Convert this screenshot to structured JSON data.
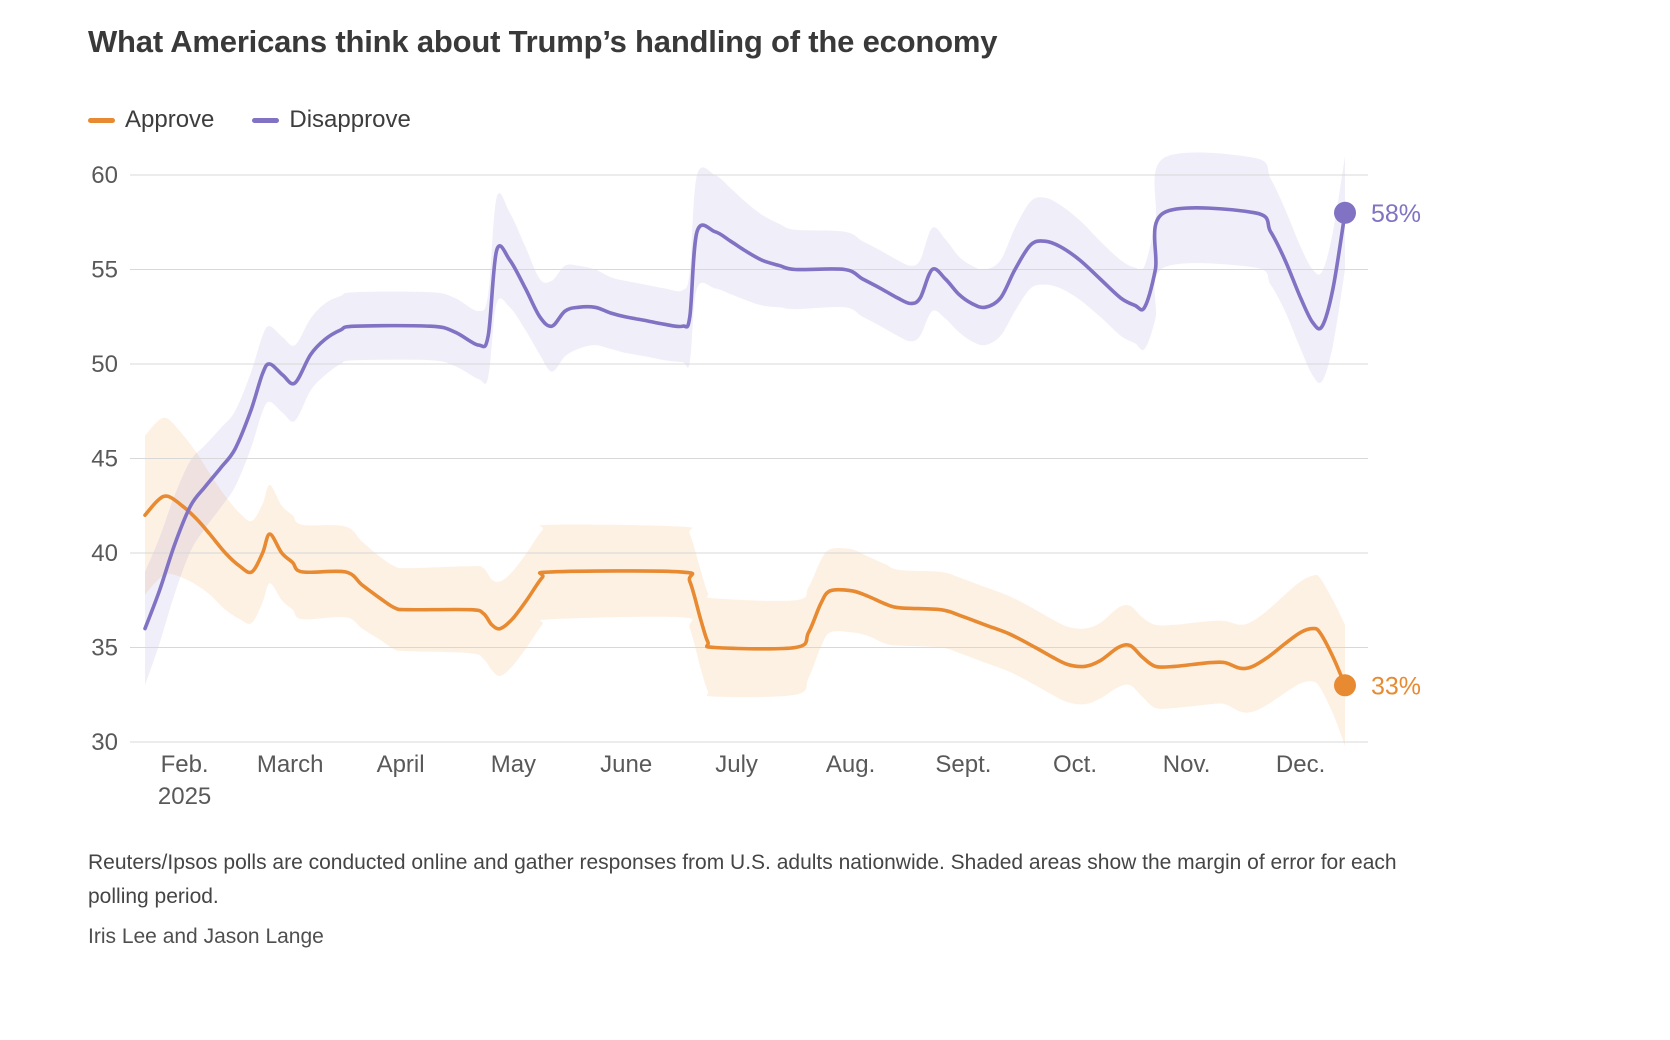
{
  "header": {
    "title": "What Americans think about Trump’s handling of the economy"
  },
  "chart_data": {
    "type": "line",
    "title": "What Americans think about Trump’s handling of the economy",
    "source_note": "Reuters/Ipsos polls are conducted online and gather responses from U.S. adults nationwide. Shaded areas show the margin of error for each polling period.",
    "grid_color": "#d8d8d8",
    "axis_text_color": "#595959",
    "y_axis": {
      "min": 30,
      "max": 60,
      "ticks": [
        60,
        55,
        50,
        45,
        40,
        35,
        30
      ]
    },
    "x_ticks": [
      {
        "label": "Feb.",
        "sub": "2025",
        "x": 3.3
      },
      {
        "label": "March",
        "x": 12.1
      },
      {
        "label": "April",
        "x": 21.3
      },
      {
        "label": "May",
        "x": 30.7
      },
      {
        "label": "June",
        "x": 40.1
      },
      {
        "label": "July",
        "x": 49.3
      },
      {
        "label": "Aug.",
        "x": 58.8
      },
      {
        "label": "Sept.",
        "x": 68.2
      },
      {
        "label": "Oct.",
        "x": 77.5
      },
      {
        "label": "Nov.",
        "x": 86.8
      },
      {
        "label": "Dec.",
        "x": 96.3
      }
    ],
    "series": [
      {
        "name": "Approve",
        "color": "#e78a31",
        "band_color": "#f09a40",
        "band_opacity": 0.14,
        "end_label": "33%",
        "points": [
          [
            0,
            42,
            4.2
          ],
          [
            1.1,
            42.8,
            4.2
          ],
          [
            1.9,
            43,
            4.1
          ],
          [
            3.1,
            42.5,
            3.8
          ],
          [
            4.3,
            41.8,
            3.5
          ],
          [
            5.4,
            41,
            3.2
          ],
          [
            6.7,
            40,
            3
          ],
          [
            7.9,
            39.3,
            2.8
          ],
          [
            8.9,
            39,
            2.7
          ],
          [
            9.8,
            40,
            2.6
          ],
          [
            10.4,
            41,
            2.6
          ],
          [
            11.4,
            40,
            2.5
          ],
          [
            12.3,
            39.5,
            2.5
          ],
          [
            13.1,
            39,
            2.5
          ],
          [
            16.7,
            39,
            2.4
          ],
          [
            18.1,
            38.3,
            2.3
          ],
          [
            19.6,
            37.6,
            2.2
          ],
          [
            20.8,
            37.1,
            2.2
          ],
          [
            21.9,
            37,
            2.2
          ],
          [
            27.1,
            37,
            2.3
          ],
          [
            28.2,
            36.8,
            2.4
          ],
          [
            28.9,
            36.2,
            2.4
          ],
          [
            29.6,
            36,
            2.5
          ],
          [
            30.6,
            36.5,
            2.5
          ],
          [
            31.8,
            37.5,
            2.5
          ],
          [
            33.1,
            38.7,
            2.5
          ],
          [
            33.9,
            39,
            2.5
          ],
          [
            44.6,
            39,
            2.4
          ],
          [
            45.4,
            38.5,
            2.5
          ],
          [
            46.3,
            36.5,
            2.6
          ],
          [
            46.9,
            35.3,
            2.6
          ],
          [
            47.5,
            35,
            2.6
          ],
          [
            54.2,
            35,
            2.5
          ],
          [
            55.3,
            35.8,
            2.4
          ],
          [
            56.3,
            37.3,
            2.3
          ],
          [
            57.1,
            38,
            2.2
          ],
          [
            58.9,
            38,
            2.2
          ],
          [
            60.3,
            37.7,
            2.1
          ],
          [
            61.7,
            37.3,
            2.1
          ],
          [
            62.9,
            37.1,
            2
          ],
          [
            66.3,
            37,
            2
          ],
          [
            67.9,
            36.7,
            2
          ],
          [
            70,
            36.2,
            2
          ],
          [
            72.1,
            35.7,
            2
          ],
          [
            74.2,
            35,
            2
          ],
          [
            75.6,
            34.5,
            2
          ],
          [
            76.9,
            34.1,
            2
          ],
          [
            78.3,
            34,
            2
          ],
          [
            79.6,
            34.3,
            2
          ],
          [
            81.1,
            35,
            2.1
          ],
          [
            82.1,
            35.1,
            2.1
          ],
          [
            83.1,
            34.5,
            2.1
          ],
          [
            84.2,
            34,
            2.2
          ],
          [
            85.8,
            34,
            2.2
          ],
          [
            87.3,
            34.1,
            2.2
          ],
          [
            88.8,
            34.2,
            2.2
          ],
          [
            90,
            34.2,
            2.2
          ],
          [
            91.3,
            33.9,
            2.3
          ],
          [
            92.3,
            34,
            2.4
          ],
          [
            93.6,
            34.5,
            2.5
          ],
          [
            95,
            35.2,
            2.6
          ],
          [
            96.3,
            35.8,
            2.7
          ],
          [
            97.3,
            36,
            2.8
          ],
          [
            97.9,
            35.8,
            2.9
          ],
          [
            99,
            34.5,
            3
          ],
          [
            100,
            33,
            3.2
          ]
        ]
      },
      {
        "name": "Disapprove",
        "color": "#8172c3",
        "band_color": "#8172c3",
        "band_opacity": 0.12,
        "end_label": "58%",
        "points": [
          [
            0,
            36,
            3
          ],
          [
            1.2,
            38,
            2.8
          ],
          [
            2.5,
            40.5,
            2.6
          ],
          [
            3.8,
            42.5,
            2.4
          ],
          [
            5,
            43.5,
            2.2
          ],
          [
            6.3,
            44.5,
            2.1
          ],
          [
            7.5,
            45.5,
            2
          ],
          [
            8.8,
            47.5,
            2
          ],
          [
            9.8,
            49.5,
            2
          ],
          [
            10.4,
            50,
            2
          ],
          [
            11.5,
            49.4,
            2
          ],
          [
            12.5,
            49,
            2
          ],
          [
            13.8,
            50.5,
            1.9
          ],
          [
            15,
            51.3,
            1.9
          ],
          [
            16.3,
            51.8,
            1.8
          ],
          [
            17.5,
            52,
            1.8
          ],
          [
            23.8,
            52,
            1.8
          ],
          [
            25.8,
            51.7,
            1.8
          ],
          [
            27.8,
            51,
            1.8
          ],
          [
            28.6,
            51.5,
            2.2
          ],
          [
            29.3,
            56,
            2.8
          ],
          [
            30.4,
            55.5,
            2.5
          ],
          [
            31.7,
            54,
            2.2
          ],
          [
            32.9,
            52.5,
            2
          ],
          [
            33.9,
            52,
            2.4
          ],
          [
            35,
            52.8,
            2.4
          ],
          [
            36.1,
            53,
            2.2
          ],
          [
            37.5,
            53,
            2
          ],
          [
            38.8,
            52.7,
            1.9
          ],
          [
            40,
            52.5,
            1.9
          ],
          [
            41.7,
            52.3,
            1.9
          ],
          [
            43.3,
            52.1,
            1.9
          ],
          [
            44.8,
            52,
            1.9
          ],
          [
            45.4,
            52.5,
            2.4
          ],
          [
            46,
            57,
            3
          ],
          [
            47.5,
            57,
            3
          ],
          [
            48.8,
            56.5,
            2.8
          ],
          [
            50,
            56,
            2.6
          ],
          [
            51.4,
            55.5,
            2.4
          ],
          [
            52.9,
            55.2,
            2.2
          ],
          [
            54.2,
            55,
            2.1
          ],
          [
            58.3,
            55,
            2
          ],
          [
            59.8,
            54.5,
            2
          ],
          [
            61.3,
            54,
            2
          ],
          [
            62.7,
            53.5,
            2
          ],
          [
            63.8,
            53.2,
            2
          ],
          [
            64.6,
            53.5,
            2
          ],
          [
            65.6,
            55,
            2.2
          ],
          [
            66.7,
            54.5,
            2.1
          ],
          [
            67.8,
            53.7,
            2
          ],
          [
            68.9,
            53.2,
            2
          ],
          [
            70,
            53,
            2
          ],
          [
            71.3,
            53.5,
            2
          ],
          [
            72.5,
            55,
            2.2
          ],
          [
            73.8,
            56.3,
            2.3
          ],
          [
            75,
            56.5,
            2.3
          ],
          [
            76.3,
            56.2,
            2.2
          ],
          [
            77.9,
            55.5,
            2.1
          ],
          [
            79.6,
            54.5,
            2
          ],
          [
            81.3,
            53.5,
            2
          ],
          [
            82.5,
            53.1,
            2
          ],
          [
            83.3,
            53,
            2.2
          ],
          [
            84.2,
            55,
            2.6
          ],
          [
            84.9,
            58,
            2.9
          ],
          [
            92.5,
            58,
            2.9
          ],
          [
            93.8,
            57,
            2.8
          ],
          [
            95,
            55.5,
            2.7
          ],
          [
            96.3,
            53.5,
            2.7
          ],
          [
            97.3,
            52.2,
            2.8
          ],
          [
            98.1,
            52,
            2.9
          ],
          [
            99,
            54,
            3
          ],
          [
            100,
            58,
            3
          ]
        ]
      }
    ]
  },
  "footer": {
    "note": "Reuters/Ipsos polls are conducted online and gather responses from U.S. adults nationwide. Shaded areas show the margin of error for each polling period.",
    "byline": "Iris Lee and Jason Lange"
  }
}
